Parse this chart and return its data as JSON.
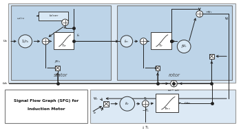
{
  "fig_width": 3.5,
  "fig_height": 1.93,
  "dpi": 100,
  "outer_bg": "#dce9f5",
  "stator_bg": "#bdd4e8",
  "rotor_bg": "#bdd4e8",
  "bot_bg": "#dce9f5",
  "title_text1": "Signal Flow Graph (SFG) for",
  "title_text2": "Induction Motor",
  "stator_label": "stator",
  "rotor_label": "rotor"
}
